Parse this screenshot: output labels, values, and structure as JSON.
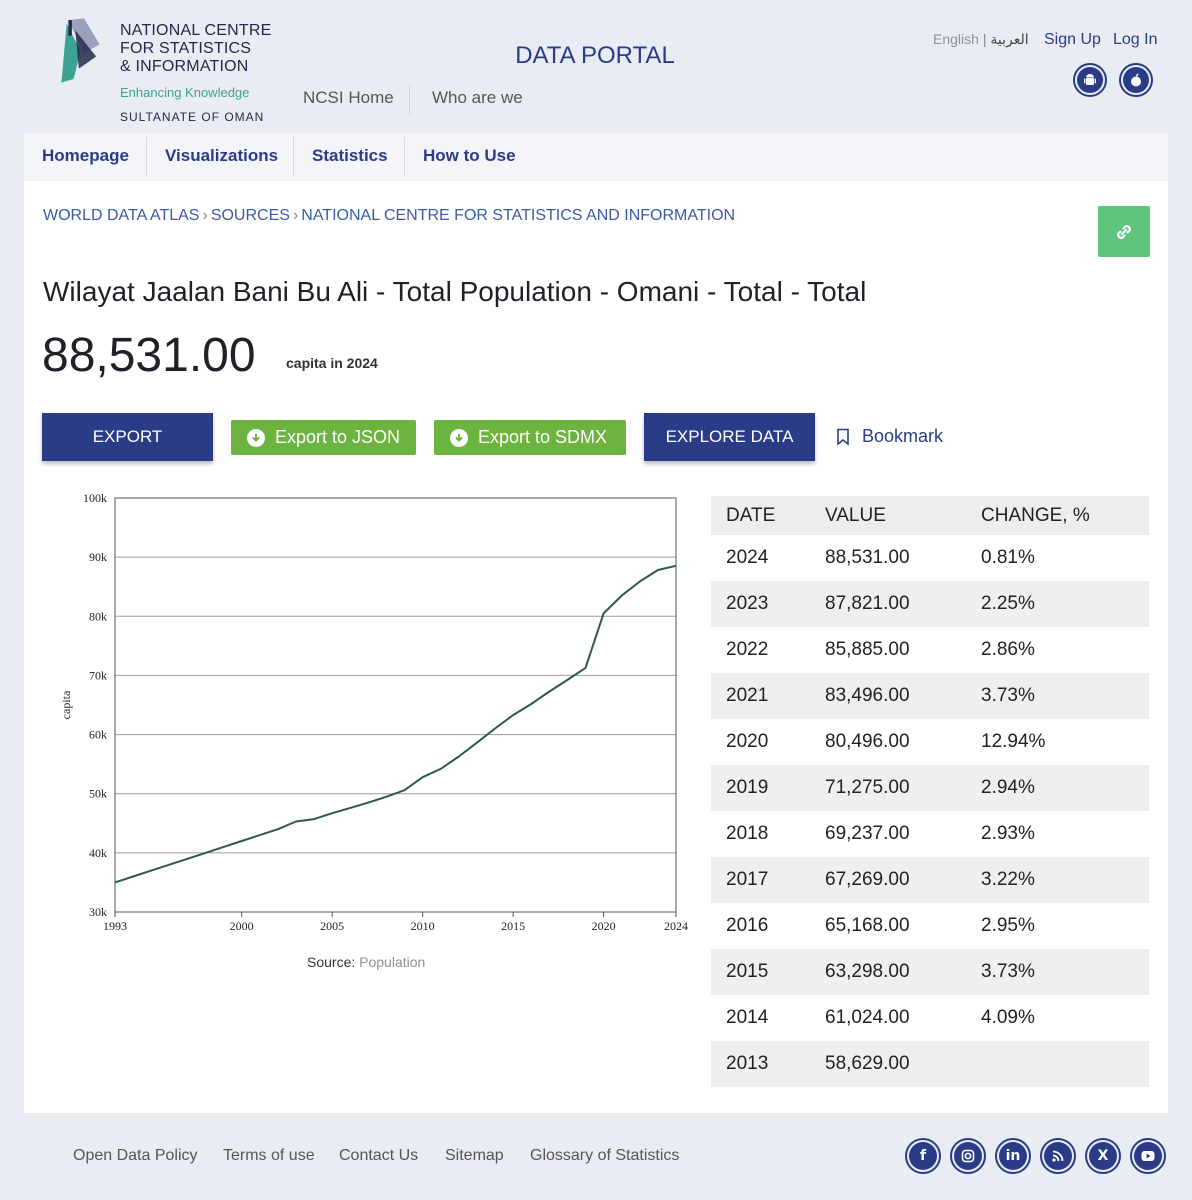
{
  "header": {
    "logo_name": "NATIONAL CENTRE\nFOR STATISTICS\n& INFORMATION",
    "logo_tagline": "Enhancing Knowledge",
    "logo_country": "SULTANATE OF OMAN",
    "portal_title": "DATA PORTAL",
    "top_nav": [
      "NCSI Home",
      "Who are we"
    ],
    "lang_en": "English",
    "lang_ar": "العربية",
    "sign_up": "Sign Up",
    "log_in": "Log In",
    "app_icons": [
      "android-icon",
      "apple-icon"
    ]
  },
  "main_nav": [
    "Homepage",
    "Visualizations",
    "Statistics",
    "How to Use"
  ],
  "breadcrumb": [
    "WORLD DATA ATLAS",
    "SOURCES",
    "NATIONAL CENTRE FOR STATISTICS AND INFORMATION"
  ],
  "indicator": {
    "title": "Wilayat Jaalan Bani Bu Ali - Total Population - Omani - Total - Total",
    "value": "88,531.00",
    "unit": "capita in 2024"
  },
  "actions": {
    "export": "EXPORT",
    "export_json": "Export to JSON",
    "export_sdmx": "Export to SDMX",
    "explore": "EXPLORE DATA",
    "bookmark": "Bookmark"
  },
  "chart_data": {
    "type": "line",
    "title": "",
    "xlabel": "",
    "ylabel": "capita",
    "xlim": [
      1993,
      2024
    ],
    "ylim": [
      30000,
      100000
    ],
    "x_ticks": [
      1993,
      2000,
      2005,
      2010,
      2015,
      2020,
      2024
    ],
    "y_ticks": [
      30000,
      40000,
      50000,
      60000,
      70000,
      80000,
      90000,
      100000
    ],
    "y_tick_labels": [
      "30k",
      "40k",
      "50k",
      "60k",
      "70k",
      "80k",
      "90k",
      "100k"
    ],
    "grid": true,
    "color": "#2f5a44",
    "x": [
      1993,
      1994,
      1995,
      1996,
      1997,
      1998,
      1999,
      2000,
      2001,
      2002,
      2003,
      2004,
      2005,
      2006,
      2007,
      2008,
      2009,
      2010,
      2011,
      2012,
      2013,
      2014,
      2015,
      2016,
      2017,
      2018,
      2019,
      2020,
      2021,
      2022,
      2023,
      2024
    ],
    "values": [
      35000,
      36000,
      37000,
      38000,
      39000,
      40000,
      41000,
      42000,
      43000,
      44000,
      45300,
      45700,
      46700,
      47600,
      48500,
      49500,
      50600,
      52800,
      54200,
      56300,
      58629,
      61024,
      63298,
      65168,
      67269,
      69237,
      71275,
      80496,
      83496,
      85885,
      87821,
      88531
    ]
  },
  "source": {
    "label": "Source:",
    "name": "Population"
  },
  "table": {
    "headers": [
      "DATE",
      "VALUE",
      "CHANGE, %"
    ],
    "rows": [
      [
        "2024",
        "88,531.00",
        "0.81%"
      ],
      [
        "2023",
        "87,821.00",
        "2.25%"
      ],
      [
        "2022",
        "85,885.00",
        "2.86%"
      ],
      [
        "2021",
        "83,496.00",
        "3.73%"
      ],
      [
        "2020",
        "80,496.00",
        "12.94%"
      ],
      [
        "2019",
        "71,275.00",
        "2.94%"
      ],
      [
        "2018",
        "69,237.00",
        "2.93%"
      ],
      [
        "2017",
        "67,269.00",
        "3.22%"
      ],
      [
        "2016",
        "65,168.00",
        "2.95%"
      ],
      [
        "2015",
        "63,298.00",
        "3.73%"
      ],
      [
        "2014",
        "61,024.00",
        "4.09%"
      ],
      [
        "2013",
        "58,629.00",
        ""
      ]
    ]
  },
  "footer": {
    "links": [
      "Open Data Policy",
      "Terms of use",
      "Contact Us",
      "Sitemap",
      "Glossary of Statistics"
    ],
    "social": [
      "facebook-icon",
      "instagram-icon",
      "linkedin-icon",
      "rss-icon",
      "x-icon",
      "youtube-icon"
    ]
  },
  "colors": {
    "brand": "#2a3c87",
    "green": "#6cb43f",
    "link_green": "#5ec47b"
  }
}
